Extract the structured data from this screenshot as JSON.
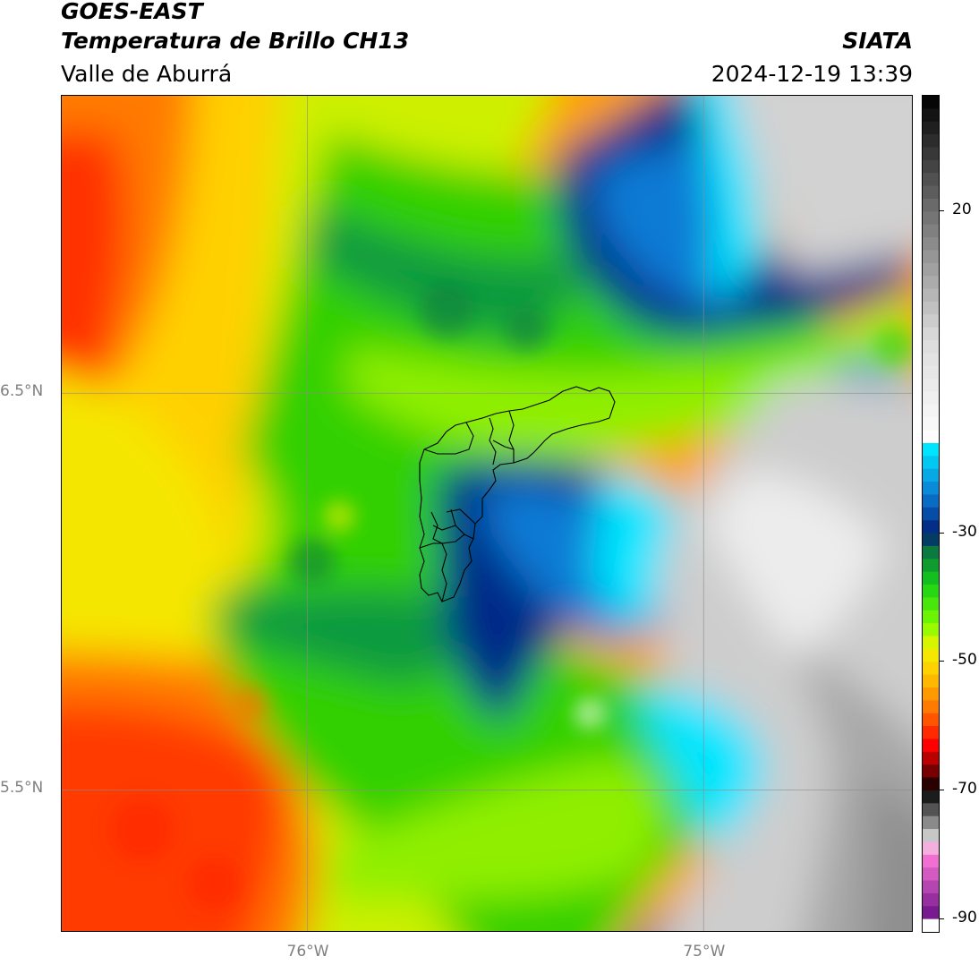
{
  "header": {
    "satellite": "GOES-EAST",
    "product": "Temperatura de Brillo CH13",
    "region": "Valle de Aburrá",
    "organization": "SIATA",
    "timestamp": "2024-12-19 13:39"
  },
  "map": {
    "x_ticks": [
      {
        "label": "76°W",
        "lon": -76.0
      },
      {
        "label": "75°W",
        "lon": -75.0
      }
    ],
    "y_ticks": [
      {
        "label": "6.5°N",
        "lat": 6.5
      },
      {
        "label": "5.5°N",
        "lat": 5.5
      }
    ],
    "lon_range": [
      -76.62,
      -74.47
    ],
    "lat_range": [
      5.14,
      7.25
    ]
  },
  "colorbar": {
    "ticks": [
      "20",
      "-30",
      "-50",
      "-70",
      "-90"
    ],
    "tick_values": [
      20,
      -30,
      -50,
      -70,
      -90
    ],
    "range": [
      -92,
      38
    ],
    "stops": [
      {
        "v": 38,
        "c": "#000000"
      },
      {
        "v": 20,
        "c": "#707070"
      },
      {
        "v": 0,
        "c": "#dcdcdc"
      },
      {
        "v": -16,
        "c": "#ffffff"
      },
      {
        "v": -17,
        "c": "#00e5ff"
      },
      {
        "v": -24,
        "c": "#0a7cd4"
      },
      {
        "v": -30,
        "c": "#001e78"
      },
      {
        "v": -33,
        "c": "#0a7a40"
      },
      {
        "v": -38,
        "c": "#15d015"
      },
      {
        "v": -44,
        "c": "#7cfc00"
      },
      {
        "v": -48,
        "c": "#f2f200"
      },
      {
        "v": -52,
        "c": "#ffc800"
      },
      {
        "v": -58,
        "c": "#ff6a00"
      },
      {
        "v": -63,
        "c": "#ff0000"
      },
      {
        "v": -68,
        "c": "#550000"
      },
      {
        "v": -70,
        "c": "#000000"
      },
      {
        "v": -75,
        "c": "#8a8a8a"
      },
      {
        "v": -78,
        "c": "#e6e6e6"
      },
      {
        "v": -80,
        "c": "#ff7ad8"
      },
      {
        "v": -89,
        "c": "#7a1a90"
      },
      {
        "v": -90,
        "c": "#ffffff"
      }
    ]
  }
}
